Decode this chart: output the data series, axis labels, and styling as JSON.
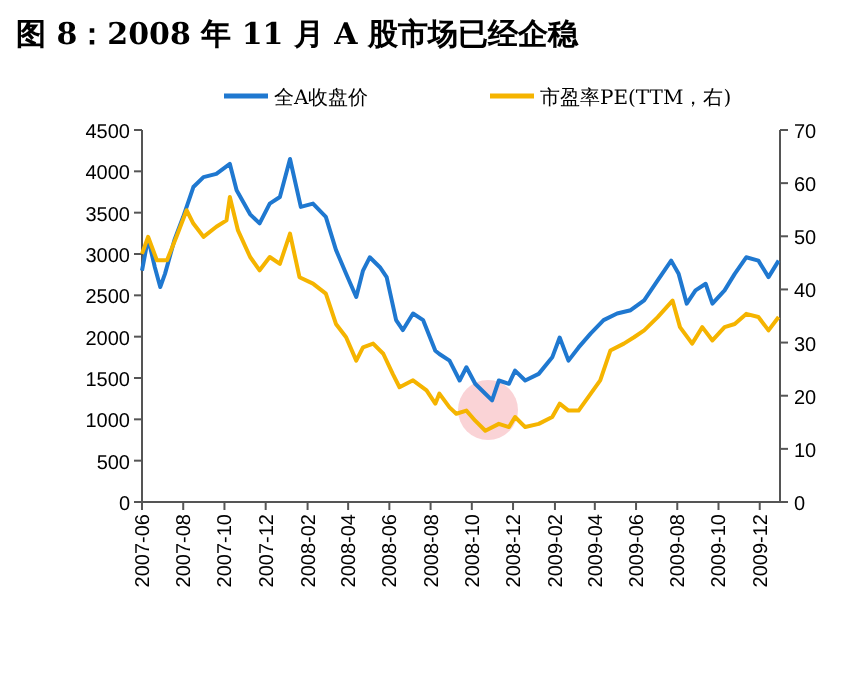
{
  "chart_data": {
    "type": "line",
    "title": "图 8：2008 年 11 月 A 股市场已经企稳",
    "legend": "top",
    "xlim": [
      "2007-06-01",
      "2009-12-31"
    ],
    "xticks": [
      "2007-06",
      "2007-08",
      "2007-10",
      "2007-12",
      "2008-02",
      "2008-04",
      "2008-06",
      "2008-08",
      "2008-10",
      "2008-12",
      "2009-02",
      "2009-04",
      "2009-06",
      "2009-08",
      "2009-10",
      "2009-12"
    ],
    "ylim": [
      0,
      4500
    ],
    "yticks": [
      0,
      500,
      1000,
      1500,
      2000,
      2500,
      3000,
      3500,
      4000,
      4500
    ],
    "y2lim": [
      0,
      70
    ],
    "y2ticks": [
      0,
      10,
      20,
      30,
      40,
      50,
      60,
      70
    ],
    "series": [
      {
        "name": "全A收盘价",
        "color": "#1f78d0",
        "x": [
          "2007-06-01",
          "2007-06-10",
          "2007-06-20",
          "2007-06-28",
          "2007-07-05",
          "2007-07-19",
          "2007-08-01",
          "2007-08-16",
          "2007-08-31",
          "2007-09-19",
          "2007-10-09",
          "2007-10-19",
          "2007-11-08",
          "2007-11-22",
          "2007-12-07",
          "2007-12-22",
          "2008-01-06",
          "2008-01-22",
          "2008-02-09",
          "2008-02-28",
          "2008-03-14",
          "2008-03-29",
          "2008-04-13",
          "2008-04-23",
          "2008-05-03",
          "2008-05-18",
          "2008-05-28",
          "2008-06-11",
          "2008-06-21",
          "2008-07-06",
          "2008-07-21",
          "2008-08-08",
          "2008-08-14",
          "2008-08-29",
          "2008-09-13",
          "2008-09-23",
          "2008-10-06",
          "2008-10-21",
          "2008-10-31",
          "2008-11-10",
          "2008-11-25",
          "2008-12-04",
          "2008-12-19",
          "2009-01-08",
          "2009-01-28",
          "2009-02-08",
          "2009-02-21",
          "2009-03-08",
          "2009-03-26",
          "2009-04-14",
          "2009-05-04",
          "2009-05-24",
          "2009-06-13",
          "2009-07-03",
          "2009-07-23",
          "2009-08-03",
          "2009-08-15",
          "2009-08-28",
          "2009-09-12",
          "2009-09-22",
          "2009-10-10",
          "2009-10-25",
          "2009-11-11",
          "2009-11-29",
          "2009-12-14",
          "2009-12-29"
        ],
        "values": [
          2800,
          3190,
          2840,
          2600,
          2760,
          3170,
          3450,
          3810,
          3930,
          3970,
          4090,
          3770,
          3480,
          3370,
          3610,
          3690,
          4150,
          3570,
          3610,
          3450,
          3050,
          2760,
          2480,
          2800,
          2960,
          2840,
          2720,
          2200,
          2080,
          2280,
          2200,
          1830,
          1790,
          1710,
          1470,
          1630,
          1430,
          1310,
          1230,
          1470,
          1430,
          1590,
          1470,
          1550,
          1750,
          1990,
          1710,
          1870,
          2040,
          2200,
          2280,
          2320,
          2440,
          2680,
          2920,
          2760,
          2400,
          2560,
          2640,
          2400,
          2560,
          2760,
          2960,
          2920,
          2720,
          2920
        ]
      },
      {
        "name": "市盈率PE(TTM，右)",
        "color": "#f5b400",
        "axis": "y2",
        "x": [
          "2007-06-01",
          "2007-06-10",
          "2007-06-23",
          "2007-07-08",
          "2007-07-22",
          "2007-08-06",
          "2007-08-16",
          "2007-08-31",
          "2007-09-19",
          "2007-10-04",
          "2007-10-09",
          "2007-10-21",
          "2007-11-08",
          "2007-11-22",
          "2007-12-07",
          "2007-12-22",
          "2008-01-06",
          "2008-01-20",
          "2008-02-09",
          "2008-02-28",
          "2008-03-14",
          "2008-03-29",
          "2008-04-13",
          "2008-04-23",
          "2008-05-08",
          "2008-05-23",
          "2008-06-06",
          "2008-06-16",
          "2008-07-06",
          "2008-07-26",
          "2008-08-08",
          "2008-08-14",
          "2008-08-29",
          "2008-09-08",
          "2008-09-23",
          "2008-10-06",
          "2008-10-21",
          "2008-11-10",
          "2008-11-25",
          "2008-12-04",
          "2008-12-19",
          "2009-01-08",
          "2009-01-28",
          "2009-02-08",
          "2009-02-21",
          "2009-03-08",
          "2009-03-26",
          "2009-04-09",
          "2009-04-24",
          "2009-05-14",
          "2009-05-29",
          "2009-06-13",
          "2009-07-03",
          "2009-07-25",
          "2009-08-05",
          "2009-08-23",
          "2009-09-07",
          "2009-09-22",
          "2009-10-10",
          "2009-10-25",
          "2009-11-11",
          "2009-11-29",
          "2009-12-14",
          "2009-12-29"
        ],
        "values": [
          46.7,
          49.9,
          45.5,
          45.5,
          49.9,
          54.9,
          52.4,
          49.9,
          51.8,
          53.0,
          57.4,
          51.1,
          46.1,
          43.6,
          46.1,
          44.8,
          50.5,
          42.3,
          41.1,
          39.2,
          33.5,
          31.0,
          26.6,
          29.1,
          29.8,
          27.9,
          24.1,
          21.6,
          22.9,
          21.0,
          18.5,
          20.4,
          17.8,
          16.6,
          17.2,
          15.3,
          13.4,
          14.7,
          14.1,
          16.0,
          14.1,
          14.7,
          16.0,
          18.5,
          17.2,
          17.2,
          20.4,
          22.9,
          28.5,
          29.8,
          31.0,
          32.3,
          34.8,
          37.9,
          32.9,
          29.8,
          32.9,
          30.4,
          32.9,
          33.5,
          35.4,
          34.8,
          32.3,
          34.8
        ]
      }
    ]
  }
}
